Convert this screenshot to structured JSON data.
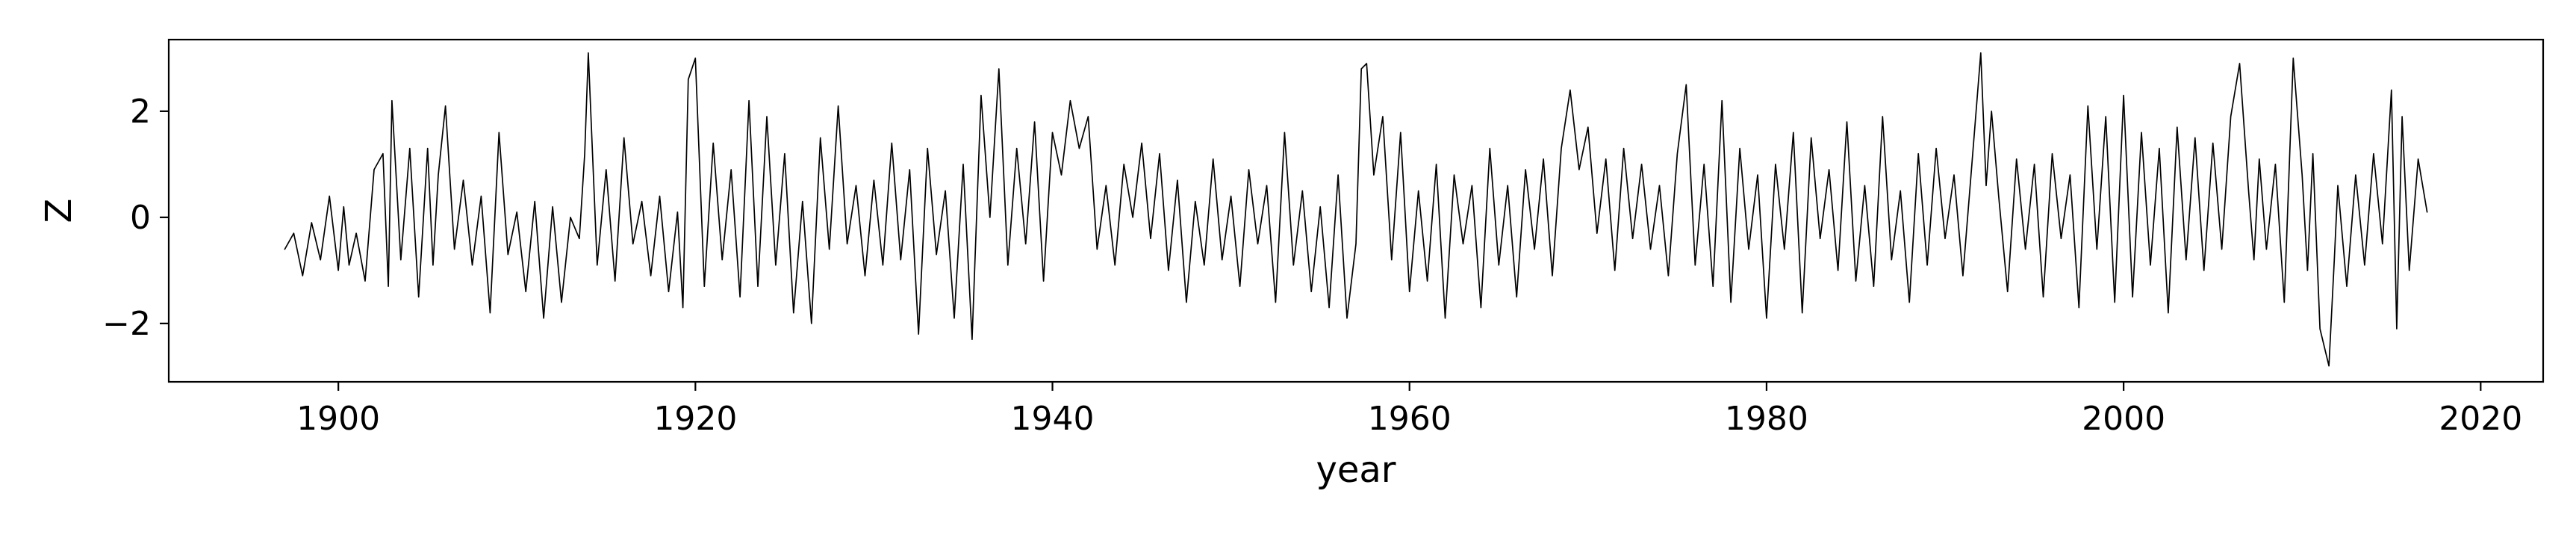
{
  "chart_data": {
    "type": "line",
    "title": "",
    "xlabel": "year",
    "ylabel": "Z",
    "xlim": [
      1890.5,
      2023.5
    ],
    "ylim": [
      -3.1,
      3.35
    ],
    "x_ticks": [
      1900,
      1920,
      1940,
      1960,
      1980,
      2000,
      2020
    ],
    "x_tick_labels": [
      "1900",
      "1920",
      "1940",
      "1960",
      "1980",
      "2000",
      "2020"
    ],
    "y_ticks": [
      -2,
      0,
      2
    ],
    "y_tick_labels": [
      "−2",
      "0",
      "2"
    ],
    "grid": false,
    "legend": "none",
    "line_color": "#000000",
    "series": [
      {
        "x": [
          1897.0,
          1897.5,
          1898.0,
          1898.5,
          1899.0,
          1899.5,
          1900.0,
          1900.3,
          1900.6,
          1901.0,
          1901.5,
          1902.0,
          1902.5,
          1902.8,
          1903.0,
          1903.5,
          1904.0,
          1904.5,
          1905.0,
          1905.3,
          1905.6,
          1906.0,
          1906.5,
          1907.0,
          1907.5,
          1908.0,
          1908.5,
          1909.0,
          1909.5,
          1910.0,
          1910.5,
          1911.0,
          1911.5,
          1912.0,
          1912.5,
          1913.0,
          1913.5,
          1913.8,
          1914.0,
          1914.5,
          1915.0,
          1915.5,
          1916.0,
          1916.5,
          1917.0,
          1917.5,
          1918.0,
          1918.5,
          1919.0,
          1919.3,
          1919.6,
          1920.0,
          1920.5,
          1921.0,
          1921.5,
          1922.0,
          1922.5,
          1923.0,
          1923.5,
          1924.0,
          1924.5,
          1925.0,
          1925.5,
          1926.0,
          1926.5,
          1927.0,
          1927.5,
          1928.0,
          1928.5,
          1929.0,
          1929.5,
          1930.0,
          1930.5,
          1931.0,
          1931.5,
          1932.0,
          1932.5,
          1933.0,
          1933.5,
          1934.0,
          1934.5,
          1935.0,
          1935.5,
          1936.0,
          1936.5,
          1937.0,
          1937.5,
          1938.0,
          1938.5,
          1939.0,
          1939.5,
          1940.0,
          1940.5,
          1941.0,
          1941.5,
          1942.0,
          1942.5,
          1943.0,
          1943.5,
          1944.0,
          1944.5,
          1945.0,
          1945.5,
          1946.0,
          1946.5,
          1947.0,
          1947.5,
          1948.0,
          1948.5,
          1949.0,
          1949.5,
          1950.0,
          1950.5,
          1951.0,
          1951.5,
          1952.0,
          1952.5,
          1953.0,
          1953.5,
          1954.0,
          1954.5,
          1955.0,
          1955.5,
          1956.0,
          1956.5,
          1957.0,
          1957.3,
          1957.6,
          1958.0,
          1958.5,
          1959.0,
          1959.5,
          1960.0,
          1960.5,
          1961.0,
          1961.5,
          1962.0,
          1962.5,
          1963.0,
          1963.5,
          1964.0,
          1964.5,
          1965.0,
          1965.5,
          1966.0,
          1966.5,
          1967.0,
          1967.5,
          1968.0,
          1968.5,
          1969.0,
          1969.5,
          1970.0,
          1970.5,
          1971.0,
          1971.5,
          1972.0,
          1972.5,
          1973.0,
          1973.5,
          1974.0,
          1974.5,
          1975.0,
          1975.5,
          1976.0,
          1976.5,
          1977.0,
          1977.5,
          1978.0,
          1978.5,
          1979.0,
          1979.5,
          1980.0,
          1980.5,
          1981.0,
          1981.5,
          1982.0,
          1982.5,
          1983.0,
          1983.5,
          1984.0,
          1984.5,
          1985.0,
          1985.5,
          1986.0,
          1986.5,
          1987.0,
          1987.5,
          1988.0,
          1988.5,
          1989.0,
          1989.5,
          1990.0,
          1990.5,
          1991.0,
          1991.5,
          1992.0,
          1992.3,
          1992.6,
          1993.0,
          1993.5,
          1994.0,
          1994.5,
          1995.0,
          1995.5,
          1996.0,
          1996.5,
          1997.0,
          1997.5,
          1998.0,
          1998.5,
          1999.0,
          1999.5,
          2000.0,
          2000.5,
          2001.0,
          2001.5,
          2002.0,
          2002.5,
          2003.0,
          2003.5,
          2004.0,
          2004.5,
          2005.0,
          2005.5,
          2006.0,
          2006.5,
          2007.0,
          2007.3,
          2007.6,
          2008.0,
          2008.5,
          2009.0,
          2009.5,
          2010.0,
          2010.3,
          2010.6,
          2011.0,
          2011.5,
          2011.8,
          2012.0,
          2012.5,
          2013.0,
          2013.5,
          2014.0,
          2014.5,
          2015.0,
          2015.3,
          2015.6,
          2016.0,
          2016.5,
          2017.0
        ],
        "values": [
          -0.6,
          -0.3,
          -1.1,
          -0.1,
          -0.8,
          0.4,
          -1.0,
          0.2,
          -0.9,
          -0.3,
          -1.2,
          0.9,
          1.2,
          -1.3,
          2.2,
          -0.8,
          1.3,
          -1.5,
          1.3,
          -0.9,
          0.8,
          2.1,
          -0.6,
          0.7,
          -0.9,
          0.4,
          -1.8,
          1.6,
          -0.7,
          0.1,
          -1.4,
          0.3,
          -1.9,
          0.2,
          -1.6,
          0.0,
          -0.4,
          1.2,
          3.1,
          -0.9,
          0.9,
          -1.2,
          1.5,
          -0.5,
          0.3,
          -1.1,
          0.4,
          -1.4,
          0.1,
          -1.7,
          2.6,
          3.0,
          -1.3,
          1.4,
          -0.8,
          0.9,
          -1.5,
          2.2,
          -1.3,
          1.9,
          -0.9,
          1.2,
          -1.8,
          0.3,
          -2.0,
          1.5,
          -0.6,
          2.1,
          -0.5,
          0.6,
          -1.1,
          0.7,
          -0.9,
          1.4,
          -0.8,
          0.9,
          -2.2,
          1.3,
          -0.7,
          0.5,
          -1.9,
          1.0,
          -2.3,
          2.3,
          0.0,
          2.8,
          -0.9,
          1.3,
          -0.5,
          1.8,
          -1.2,
          1.6,
          0.8,
          2.2,
          1.3,
          1.9,
          -0.6,
          0.6,
          -0.9,
          1.0,
          0.0,
          1.4,
          -0.4,
          1.2,
          -1.0,
          0.7,
          -1.6,
          0.3,
          -0.9,
          1.1,
          -0.8,
          0.4,
          -1.3,
          0.9,
          -0.5,
          0.6,
          -1.6,
          1.6,
          -0.9,
          0.5,
          -1.4,
          0.2,
          -1.7,
          0.8,
          -1.9,
          -0.5,
          2.8,
          2.9,
          0.8,
          1.9,
          -0.8,
          1.6,
          -1.4,
          0.5,
          -1.2,
          1.0,
          -1.9,
          0.8,
          -0.5,
          0.6,
          -1.7,
          1.3,
          -0.9,
          0.6,
          -1.5,
          0.9,
          -0.6,
          1.1,
          -1.1,
          1.3,
          2.4,
          0.9,
          1.7,
          -0.3,
          1.1,
          -1.0,
          1.3,
          -0.4,
          1.0,
          -0.6,
          0.6,
          -1.1,
          1.2,
          2.5,
          -0.9,
          1.0,
          -1.3,
          2.2,
          -1.6,
          1.3,
          -0.6,
          0.8,
          -1.9,
          1.0,
          -0.6,
          1.6,
          -1.8,
          1.5,
          -0.4,
          0.9,
          -1.0,
          1.8,
          -1.2,
          0.6,
          -1.3,
          1.9,
          -0.8,
          0.5,
          -1.6,
          1.2,
          -0.9,
          1.3,
          -0.4,
          0.8,
          -1.1,
          1.0,
          3.1,
          0.6,
          2.0,
          0.4,
          -1.4,
          1.1,
          -0.6,
          1.0,
          -1.5,
          1.2,
          -0.4,
          0.8,
          -1.7,
          2.1,
          -0.6,
          1.9,
          -1.6,
          2.3,
          -1.5,
          1.6,
          -0.9,
          1.3,
          -1.8,
          1.7,
          -0.8,
          1.5,
          -1.0,
          1.4,
          -0.6,
          1.9,
          2.9,
          0.5,
          -0.8,
          1.1,
          -0.6,
          1.0,
          -1.6,
          3.0,
          0.8,
          -1.0,
          1.2,
          -2.1,
          -2.8,
          -0.8,
          0.6,
          -1.3,
          0.8,
          -0.9,
          1.2,
          -0.5,
          2.4,
          -2.1,
          1.9,
          -1.0,
          1.1,
          0.1
        ]
      }
    ]
  }
}
